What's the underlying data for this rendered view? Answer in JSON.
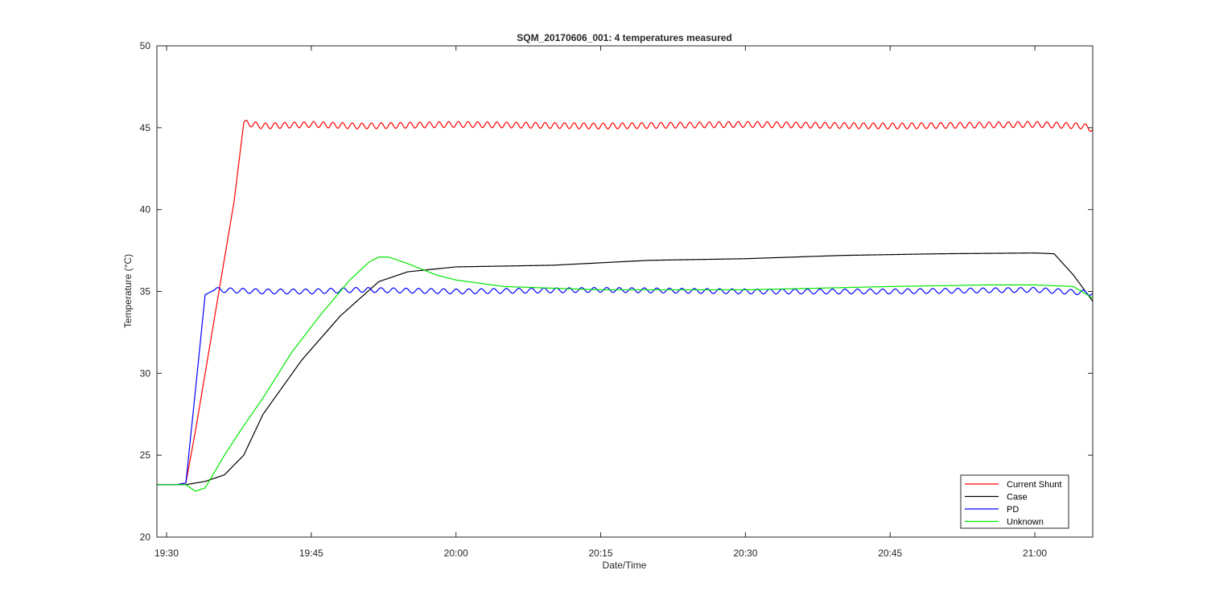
{
  "chart_data": {
    "type": "line",
    "title": "SQM_20170606_001: 4 temperatures measured",
    "xlabel": "Date/Time",
    "ylabel": "Temperature (°C)",
    "xlim": [
      "19:29",
      "21:06"
    ],
    "ylim": [
      20,
      50
    ],
    "xticks": [
      "19:30",
      "19:45",
      "20:00",
      "20:15",
      "20:30",
      "20:45",
      "21:00"
    ],
    "yticks": [
      20,
      25,
      30,
      35,
      40,
      45,
      50
    ],
    "grid": false,
    "legend": "bottom-right",
    "series": [
      {
        "name": "Current Shunt",
        "color": "#ff0000",
        "x": [
          "19:29",
          "19:30",
          "19:31",
          "19:32",
          "19:33",
          "19:34",
          "19:35",
          "19:36",
          "19:37",
          "19:38",
          "19:40",
          "19:45",
          "19:50",
          "20:00",
          "20:15",
          "20:30",
          "20:45",
          "21:00",
          "21:05",
          "21:06"
        ],
        "y": [
          23.2,
          23.2,
          23.2,
          23.3,
          26.5,
          30.0,
          33.5,
          37.0,
          40.5,
          45.3,
          45.1,
          45.2,
          45.1,
          45.2,
          45.1,
          45.2,
          45.1,
          45.2,
          45.1,
          44.9
        ],
        "oscillation": {
          "start": "19:38",
          "period_min": 1.0,
          "amplitude": 0.18
        }
      },
      {
        "name": "Case",
        "color": "#000000",
        "x": [
          "19:29",
          "19:32",
          "19:34",
          "19:36",
          "19:38",
          "19:40",
          "19:44",
          "19:48",
          "19:52",
          "19:55",
          "20:00",
          "20:10",
          "20:20",
          "20:30",
          "20:40",
          "20:50",
          "21:00",
          "21:02",
          "21:04",
          "21:06"
        ],
        "y": [
          23.2,
          23.2,
          23.4,
          23.8,
          25.0,
          27.5,
          30.8,
          33.5,
          35.6,
          36.2,
          36.5,
          36.6,
          36.9,
          37.0,
          37.2,
          37.3,
          37.35,
          37.3,
          36.0,
          34.4
        ],
        "oscillation": null
      },
      {
        "name": "PD",
        "color": "#0000ff",
        "x": [
          "19:29",
          "19:31",
          "19:32",
          "19:33",
          "19:34",
          "19:35",
          "19:40",
          "19:45",
          "19:50",
          "20:00",
          "20:15",
          "20:30",
          "20:45",
          "21:00",
          "21:06"
        ],
        "y": [
          23.2,
          23.2,
          23.3,
          29.0,
          34.8,
          35.1,
          35.0,
          35.0,
          35.1,
          35.0,
          35.1,
          35.0,
          35.0,
          35.1,
          34.9
        ],
        "oscillation": {
          "start": "19:35",
          "period_min": 1.3,
          "amplitude": 0.15
        }
      },
      {
        "name": "Unknown",
        "color": "#00e600",
        "x": [
          "19:29",
          "19:32",
          "19:33",
          "19:34",
          "19:36",
          "19:38",
          "19:40",
          "19:43",
          "19:46",
          "19:49",
          "19:51",
          "19:52",
          "19:53",
          "19:55",
          "19:58",
          "20:00",
          "20:05",
          "20:15",
          "20:30",
          "20:45",
          "20:55",
          "21:00",
          "21:04",
          "21:06"
        ],
        "y": [
          23.2,
          23.2,
          22.8,
          23.0,
          25.0,
          26.8,
          28.5,
          31.3,
          33.6,
          35.7,
          36.8,
          37.1,
          37.1,
          36.7,
          36.0,
          35.7,
          35.3,
          35.1,
          35.1,
          35.3,
          35.4,
          35.4,
          35.3,
          34.6
        ],
        "oscillation": null
      }
    ]
  }
}
